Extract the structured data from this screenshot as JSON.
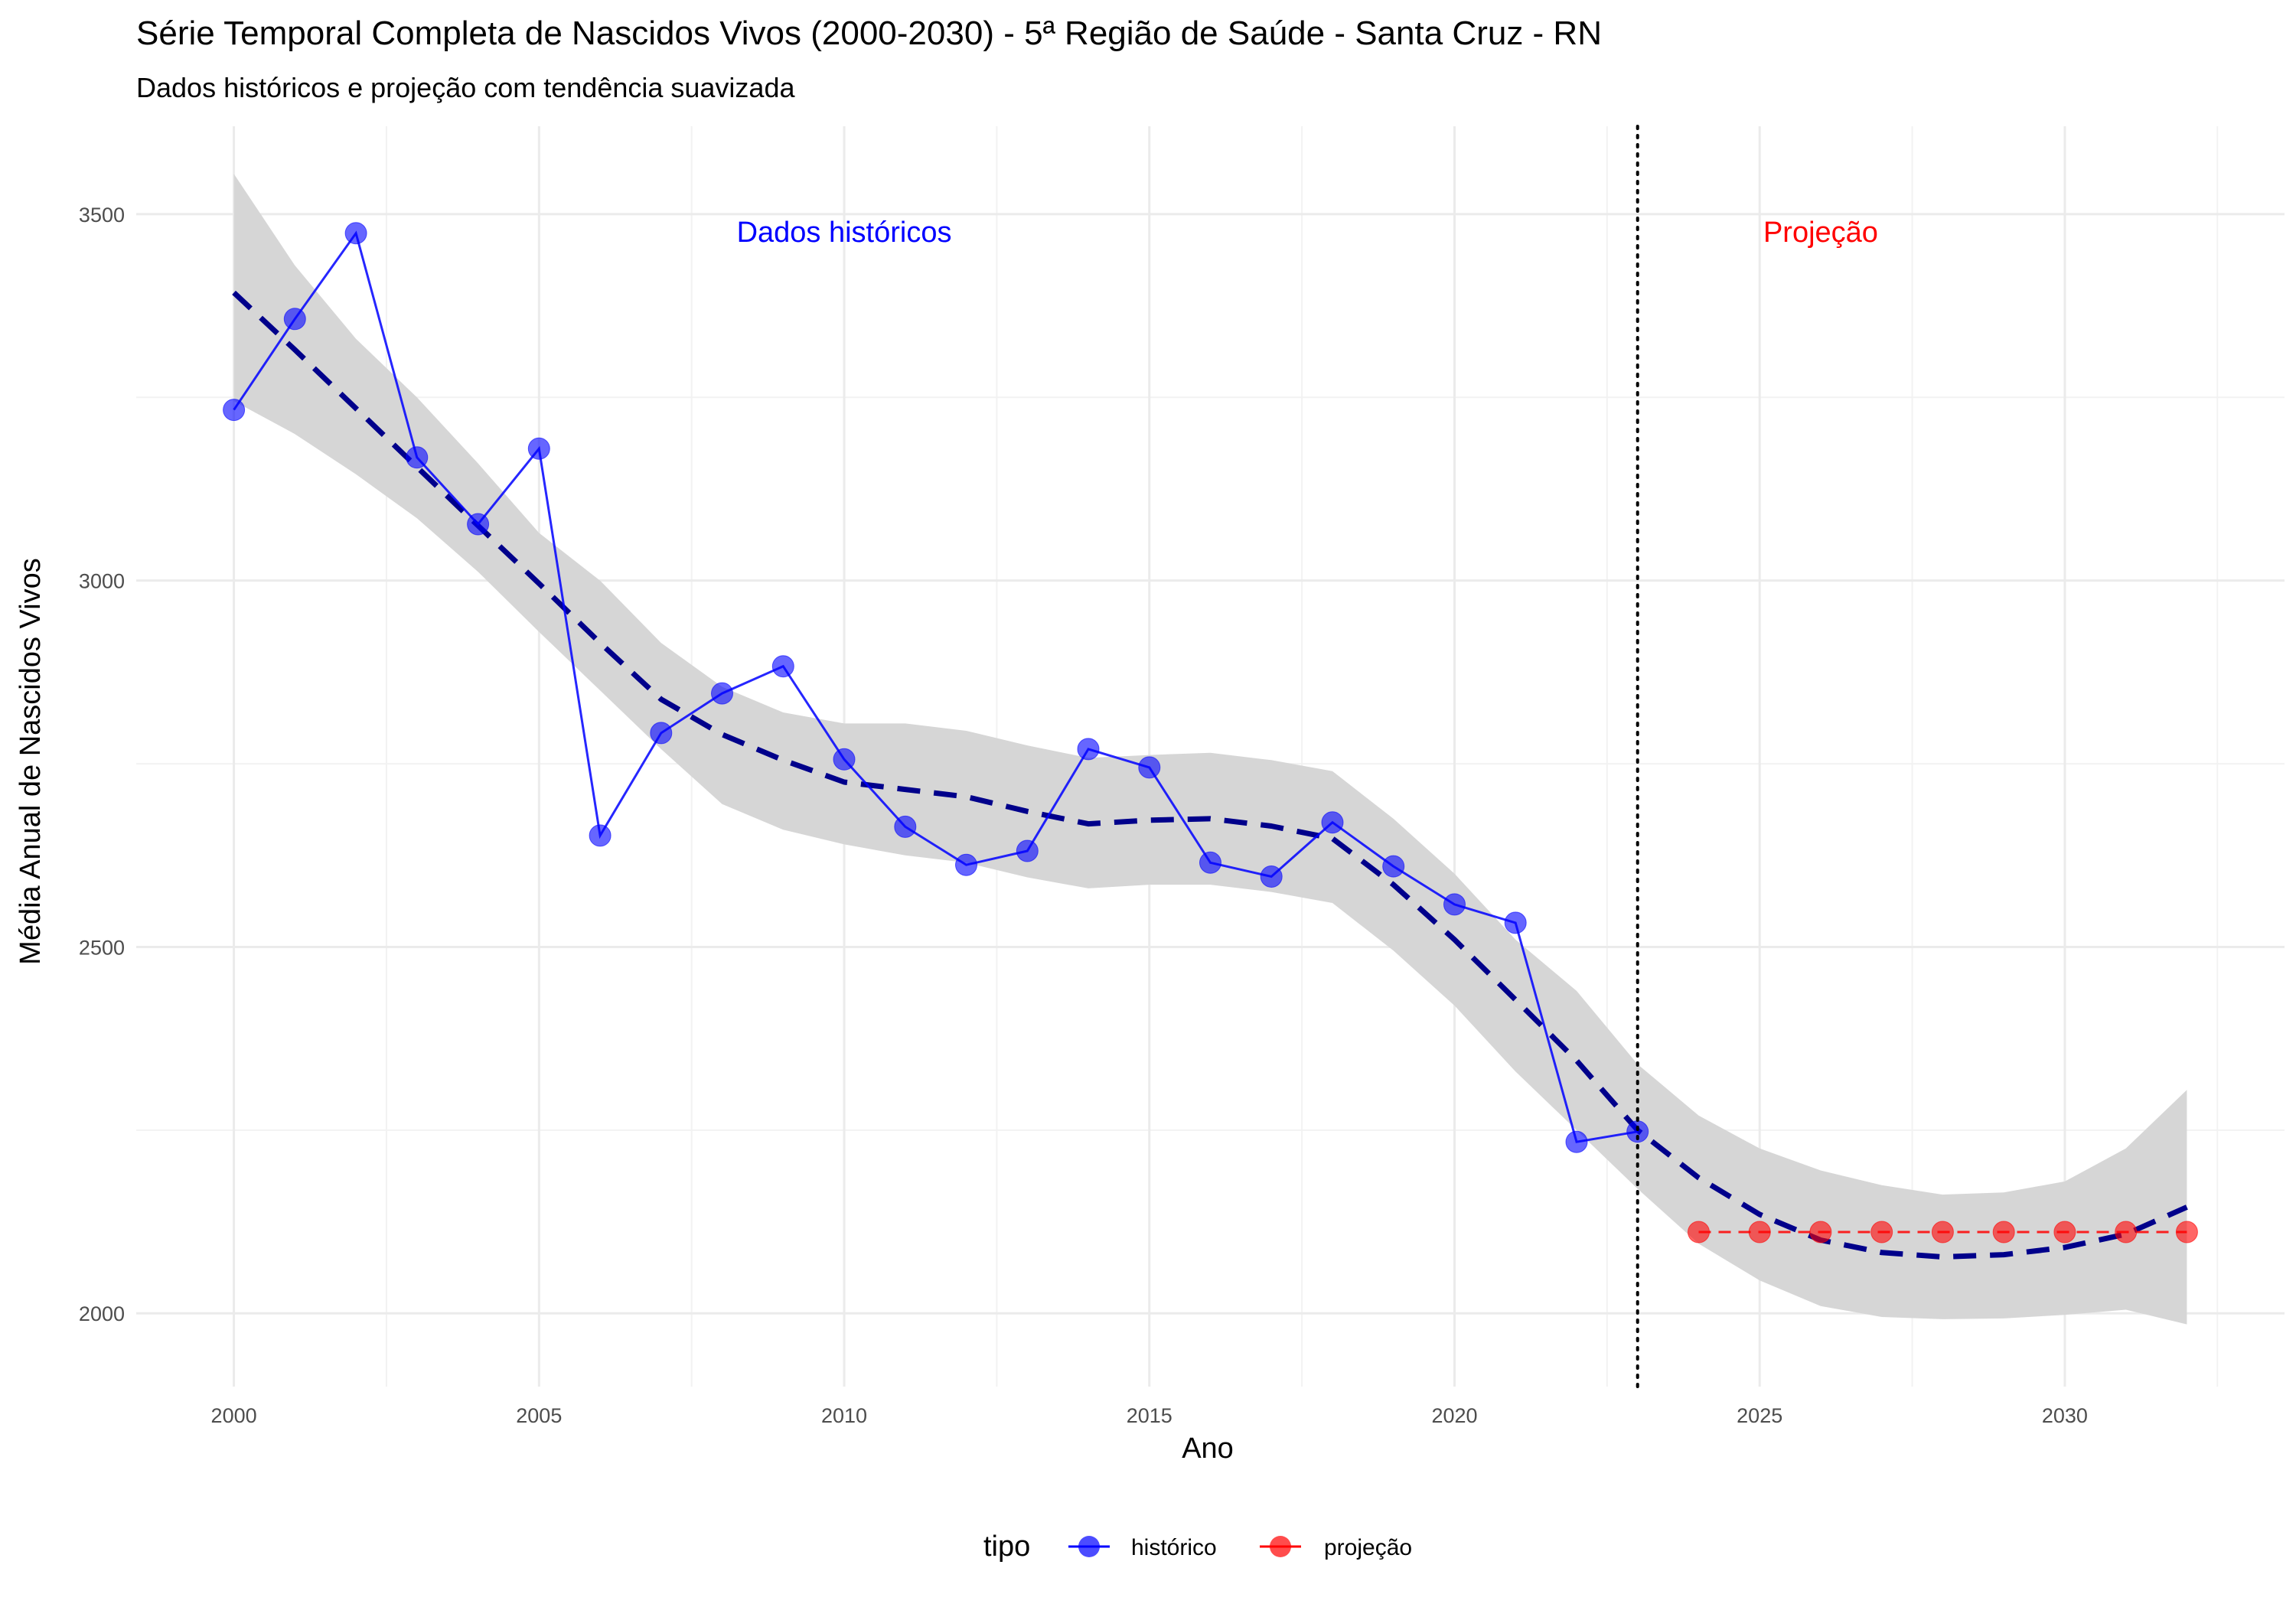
{
  "chart_data": {
    "type": "line",
    "title": "Série Temporal Completa de Nascidos Vivos (2000-2030) -  5ª Região de Saúde - Santa Cruz - RN",
    "subtitle": "Dados históricos e projeção com tendência suavizada",
    "xlabel": "Ano",
    "ylabel": "Média Anual de Nascidos Vivos",
    "xlim": [
      1998.4,
      2033.6
    ],
    "ylim": [
      1900,
      3620
    ],
    "x_ticks": [
      2000,
      2005,
      2010,
      2015,
      2020,
      2025,
      2030
    ],
    "y_ticks": [
      2000,
      2500,
      3000,
      3500
    ],
    "grid": true,
    "legend_position": "bottom",
    "legend_title": "tipo",
    "series": [
      {
        "name": "histórico",
        "color": "#0000ff",
        "x": [
          2000,
          2001,
          2002,
          2003,
          2004,
          2005,
          2006,
          2007,
          2008,
          2009,
          2010,
          2011,
          2012,
          2013,
          2014,
          2015,
          2016,
          2017,
          2018,
          2019,
          2020,
          2021,
          2022,
          2023
        ],
        "y": [
          3233,
          3357,
          3474,
          3168,
          3077,
          3180,
          2652,
          2792,
          2846,
          2883,
          2756,
          2664,
          2612,
          2631,
          2770,
          2745,
          2615,
          2596,
          2670,
          2610,
          2558,
          2533,
          2234,
          2248
        ]
      },
      {
        "name": "projeção",
        "color": "#ff0000",
        "x": [
          2024,
          2025,
          2026,
          2027,
          2028,
          2029,
          2030,
          2031,
          2032
        ],
        "y": [
          2111,
          2111,
          2111,
          2111,
          2111,
          2111,
          2111,
          2111,
          2111
        ]
      }
    ],
    "trend": {
      "color": "#00008b",
      "x": [
        2000,
        2001,
        2002,
        2003,
        2004,
        2005,
        2006,
        2007,
        2008,
        2009,
        2010,
        2011,
        2012,
        2013,
        2014,
        2015,
        2016,
        2017,
        2018,
        2019,
        2020,
        2021,
        2022,
        2023,
        2024,
        2025,
        2026,
        2027,
        2028,
        2029,
        2030,
        2031,
        2032
      ],
      "y": [
        3393,
        3315,
        3235,
        3155,
        3075,
        2996,
        2915,
        2838,
        2790,
        2755,
        2725,
        2715,
        2705,
        2685,
        2668,
        2673,
        2675,
        2665,
        2648,
        2585,
        2510,
        2428,
        2345,
        2250,
        2185,
        2135,
        2100,
        2083,
        2077,
        2080,
        2090,
        2108,
        2145
      ],
      "ci_lower": [
        3245,
        3200,
        3145,
        3085,
        3012,
        2930,
        2850,
        2770,
        2695,
        2660,
        2640,
        2625,
        2615,
        2595,
        2580,
        2585,
        2585,
        2575,
        2560,
        2495,
        2420,
        2330,
        2250,
        2170,
        2095,
        2045,
        2010,
        1995,
        1992,
        1993,
        1998,
        2005,
        1985
      ],
      "ci_upper": [
        3555,
        3430,
        3330,
        3250,
        3160,
        3065,
        3000,
        2915,
        2855,
        2820,
        2805,
        2805,
        2795,
        2775,
        2758,
        2762,
        2765,
        2755,
        2740,
        2675,
        2600,
        2510,
        2440,
        2340,
        2270,
        2225,
        2195,
        2175,
        2162,
        2165,
        2180,
        2225,
        2305
      ],
      "ci_color": "#d6d6d6"
    },
    "vline": {
      "x": 2023,
      "style": "dotted",
      "color": "#000000"
    },
    "annotations": [
      {
        "text": "Dados históricos",
        "x": 2010,
        "y": 3475,
        "color": "#0000ff"
      },
      {
        "text": "Projeção",
        "x": 2026,
        "y": 3475,
        "color": "#ff0000"
      }
    ]
  }
}
